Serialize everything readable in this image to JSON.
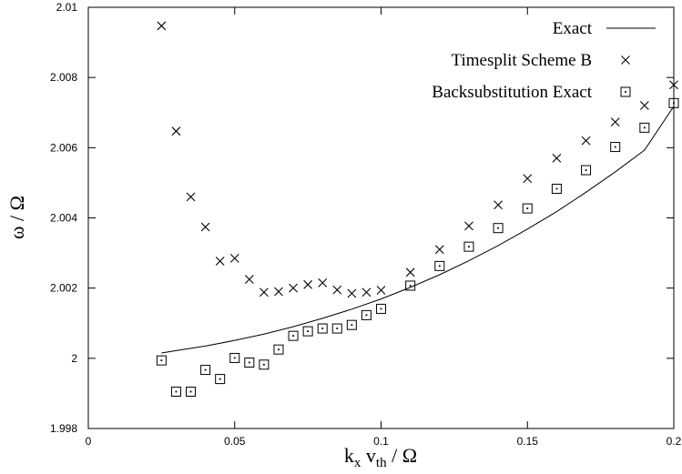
{
  "chart_data": {
    "type": "scatter",
    "title": "",
    "xlabel": {
      "main": "k",
      "sub_x": "x",
      "mid": " v",
      "sub_th": "th",
      "tail": " / Ω"
    },
    "ylabel": "ω / Ω",
    "xlim": [
      0,
      0.2
    ],
    "ylim": [
      1.998,
      2.01
    ],
    "xticks": [
      0,
      0.05,
      0.1,
      0.15,
      0.2
    ],
    "xtick_labels": [
      "0",
      "0.05",
      "0.1",
      "0.15",
      "0.2"
    ],
    "yticks": [
      1.998,
      2,
      2.002,
      2.004,
      2.006,
      2.008,
      2.01
    ],
    "ytick_labels": [
      "1.998",
      "2",
      "2.002",
      "2.004",
      "2.006",
      "2.008",
      "2.01"
    ],
    "grid": false,
    "legend_position": "top-right",
    "colors": {
      "foreground": "#000000",
      "background": "#ffffff"
    },
    "series": [
      {
        "name": "Exact",
        "style": "line",
        "x": [
          0.025,
          0.03,
          0.04,
          0.05,
          0.06,
          0.07,
          0.08,
          0.09,
          0.1,
          0.11,
          0.12,
          0.13,
          0.14,
          0.15,
          0.16,
          0.17,
          0.18,
          0.19,
          0.2
        ],
        "y": [
          2.00015,
          2.00022,
          2.00035,
          2.00051,
          2.00069,
          2.0009,
          2.00114,
          2.0014,
          2.00169,
          2.00202,
          2.00238,
          2.00278,
          2.00321,
          2.00368,
          2.00418,
          2.00473,
          2.00531,
          2.00593,
          2.00718
        ]
      },
      {
        "name": "Timesplit Scheme B",
        "style": "cross",
        "x": [
          0.025,
          0.03,
          0.035,
          0.04,
          0.045,
          0.05,
          0.055,
          0.06,
          0.065,
          0.07,
          0.075,
          0.08,
          0.085,
          0.09,
          0.095,
          0.1,
          0.11,
          0.12,
          0.13,
          0.14,
          0.15,
          0.16,
          0.17,
          0.18,
          0.19,
          0.2
        ],
        "y": [
          2.00947,
          2.00647,
          2.0046,
          2.00374,
          2.00277,
          2.00285,
          2.00225,
          2.00188,
          2.0019,
          2.002,
          2.0021,
          2.00215,
          2.00195,
          2.00185,
          2.00188,
          2.00194,
          2.00245,
          2.0031,
          2.00377,
          2.00437,
          2.00512,
          2.0057,
          2.0062,
          2.00673,
          2.0072,
          2.00779
        ]
      },
      {
        "name": "Backsubstitution Exact",
        "style": "dotted-square",
        "x": [
          0.025,
          0.03,
          0.035,
          0.04,
          0.045,
          0.05,
          0.055,
          0.06,
          0.065,
          0.07,
          0.075,
          0.08,
          0.085,
          0.09,
          0.095,
          0.1,
          0.11,
          0.12,
          0.13,
          0.14,
          0.15,
          0.16,
          0.17,
          0.18,
          0.19,
          0.2
        ],
        "y": [
          1.99994,
          1.99905,
          1.99905,
          1.99967,
          1.99941,
          2.00001,
          1.99988,
          1.99982,
          2.00025,
          2.00064,
          2.00077,
          2.00085,
          2.00085,
          2.00095,
          2.00123,
          2.00141,
          2.00207,
          2.00263,
          2.00318,
          2.00371,
          2.00427,
          2.00483,
          2.00536,
          2.00602,
          2.00657,
          2.00727
        ]
      }
    ]
  }
}
